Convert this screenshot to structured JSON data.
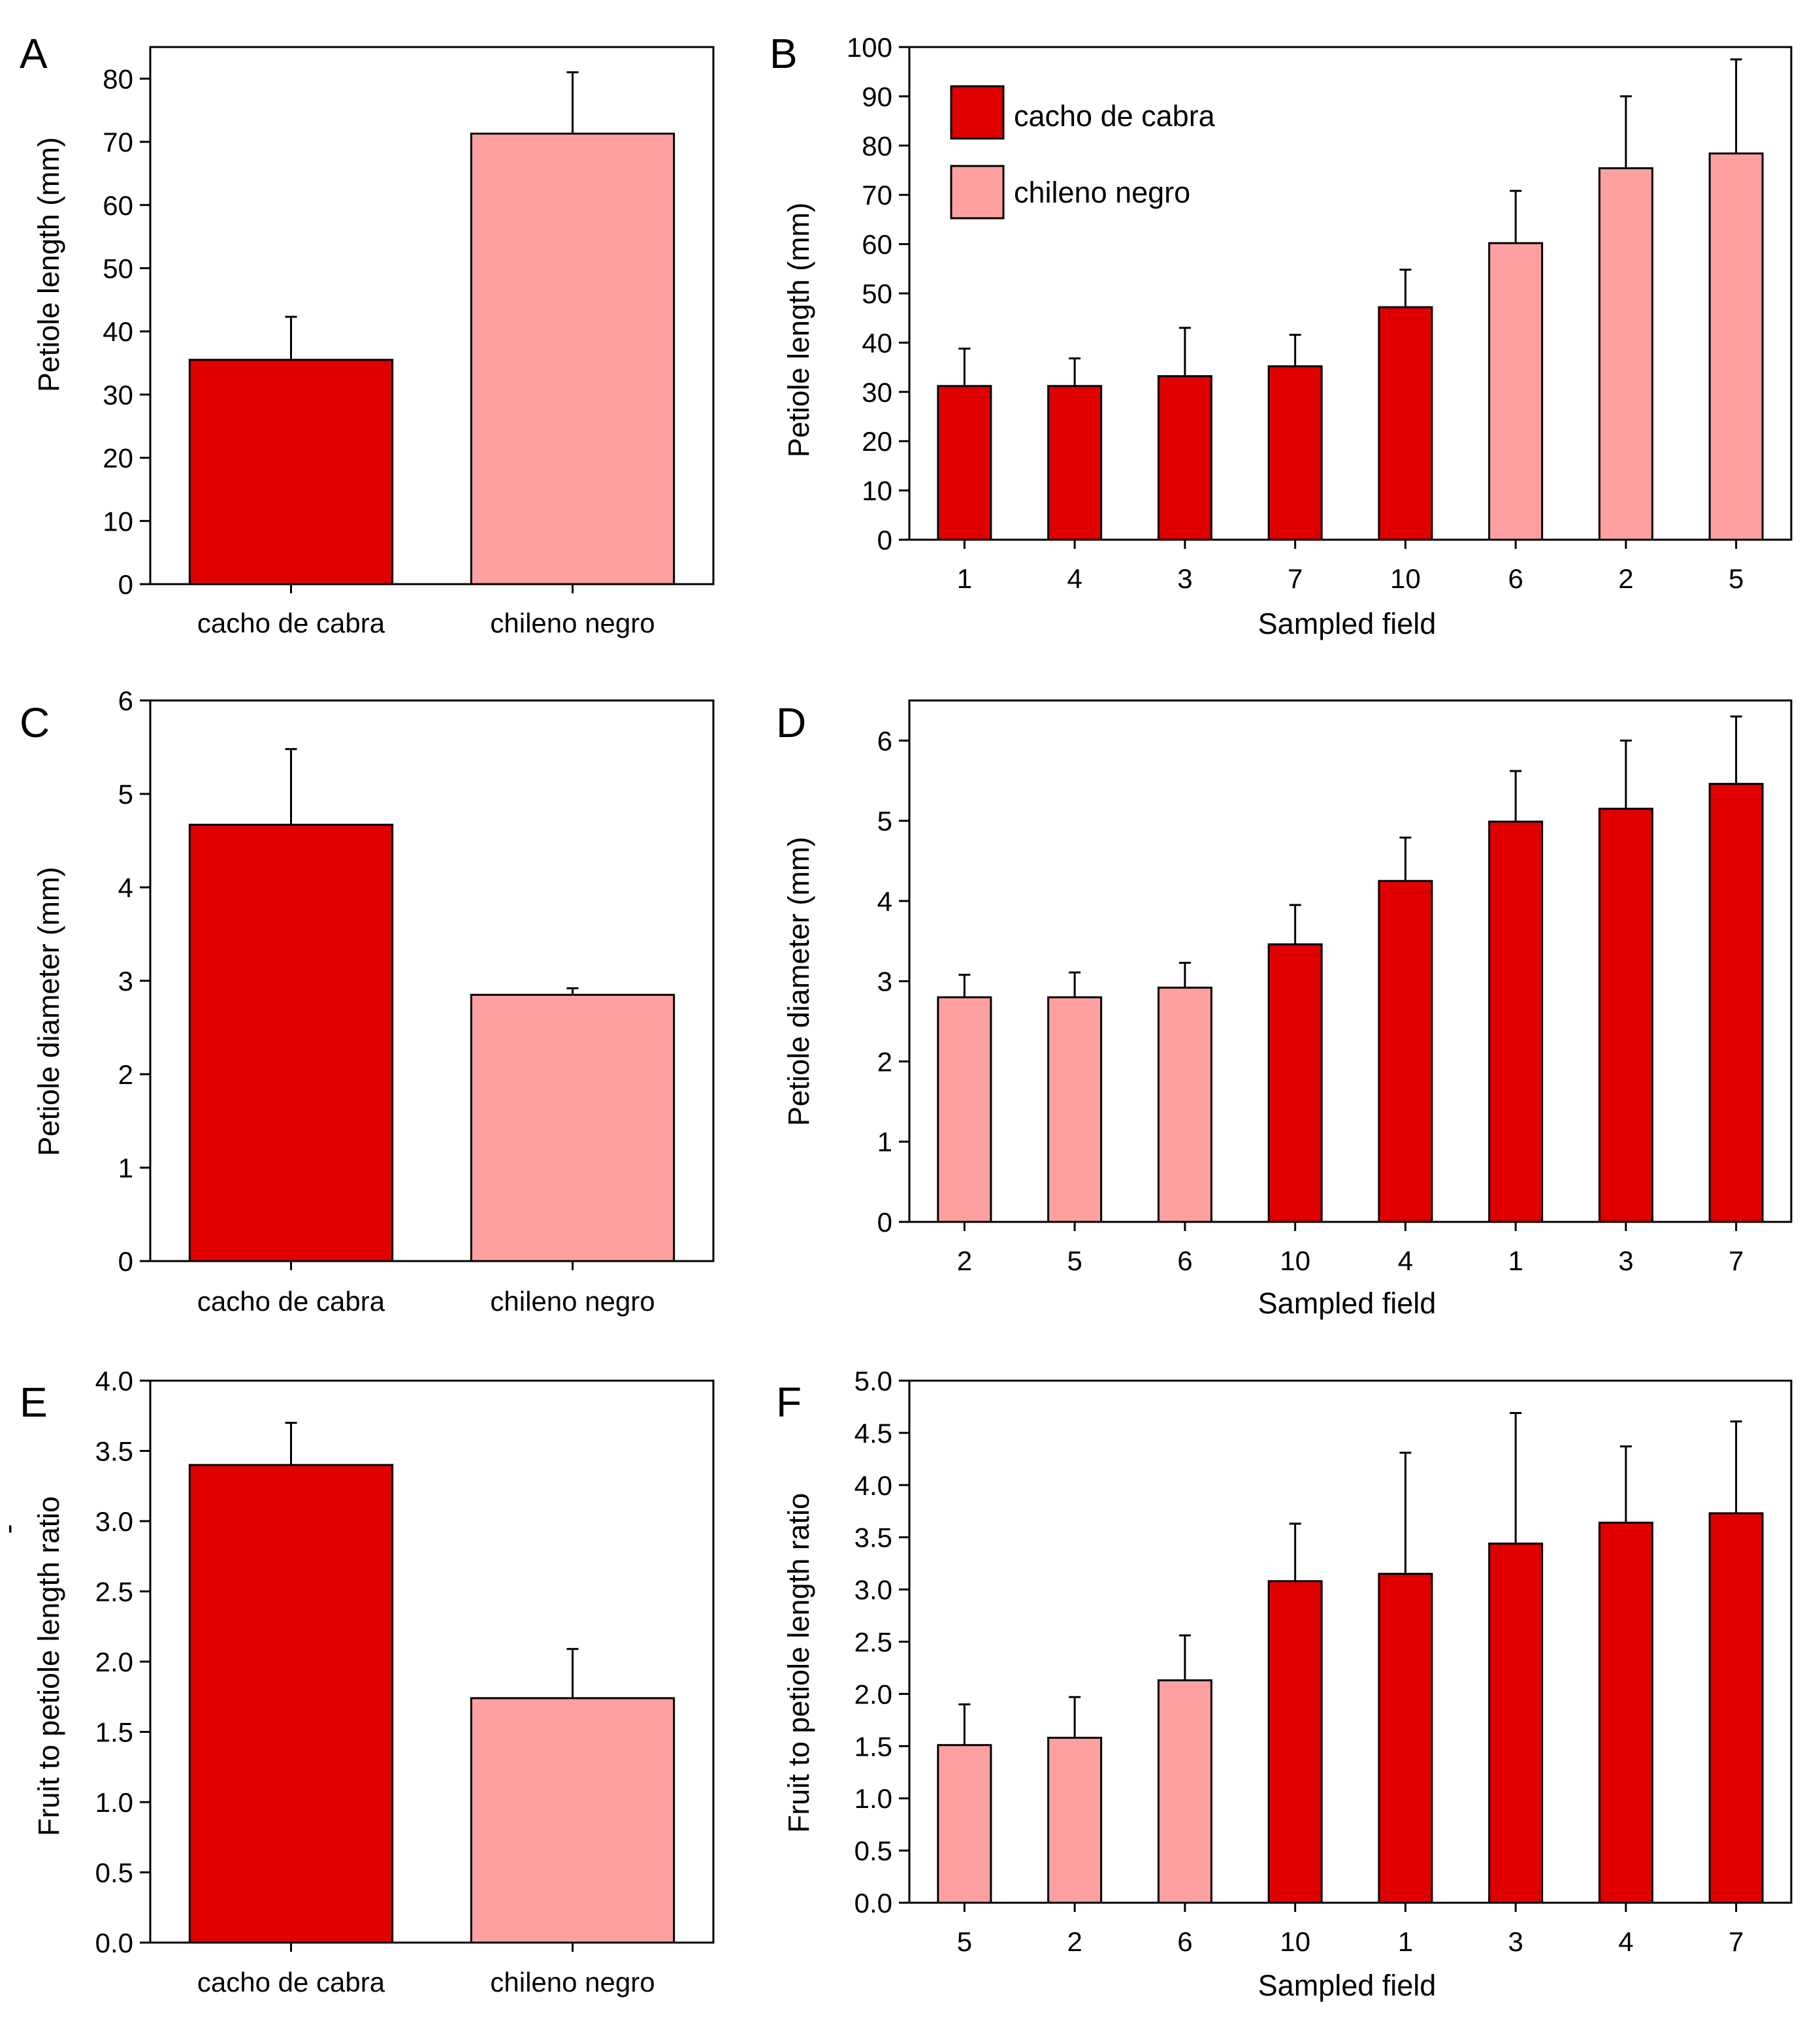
{
  "colors": {
    "cacho_de_cabra": "#e00000",
    "chileno_negro": "#ffa0a0",
    "outline": "#000000"
  },
  "legend": {
    "items": [
      {
        "label": "cacho de cabra",
        "color_key": "cacho_de_cabra"
      },
      {
        "label": "chileno negro",
        "color_key": "chileno_negro"
      }
    ]
  },
  "chart_data": [
    {
      "panel": "A",
      "type": "bar",
      "categories": [
        "cacho de cabra",
        "chileno negro"
      ],
      "groups": [
        "cacho_de_cabra",
        "chileno_negro"
      ],
      "values": [
        35.5,
        71.3
      ],
      "errors": [
        6.8,
        9.7
      ],
      "xlabel": "",
      "ylabel": "Petiole length (mm)",
      "ylim": [
        0,
        85
      ],
      "yticks": [
        "0",
        "10",
        "20",
        "30",
        "40",
        "50",
        "60",
        "70",
        "80"
      ],
      "ytick_values": [
        0,
        10,
        20,
        30,
        40,
        50,
        60,
        70,
        80
      ]
    },
    {
      "panel": "B",
      "type": "bar",
      "categories": [
        "1",
        "4",
        "3",
        "7",
        "10",
        "6",
        "2",
        "5"
      ],
      "groups": [
        "cacho_de_cabra",
        "cacho_de_cabra",
        "cacho_de_cabra",
        "cacho_de_cabra",
        "cacho_de_cabra",
        "chileno_negro",
        "chileno_negro",
        "chileno_negro"
      ],
      "values": [
        31.2,
        31.2,
        33.2,
        35.2,
        47.2,
        60.2,
        75.4,
        78.4
      ],
      "errors": [
        7.6,
        5.6,
        9.8,
        6.4,
        7.6,
        10.6,
        14.6,
        19.1
      ],
      "xlabel": "Sampled field",
      "ylabel": "Petiole length (mm)",
      "ylim": [
        0,
        100
      ],
      "yticks": [
        "0",
        "10",
        "20",
        "30",
        "40",
        "50",
        "60",
        "70",
        "80",
        "90",
        "100"
      ],
      "ytick_values": [
        0,
        10,
        20,
        30,
        40,
        50,
        60,
        70,
        80,
        90,
        100
      ],
      "legend": true
    },
    {
      "panel": "C",
      "type": "bar",
      "categories": [
        "cacho de cabra",
        "chileno negro"
      ],
      "groups": [
        "cacho_de_cabra",
        "chileno_negro"
      ],
      "values": [
        4.67,
        2.85
      ],
      "errors": [
        0.81,
        0.07
      ],
      "xlabel": "",
      "ylabel": "Petiole diameter (mm)",
      "ylim": [
        0,
        6
      ],
      "yticks": [
        "0",
        "1",
        "2",
        "3",
        "4",
        "5",
        "6"
      ],
      "ytick_values": [
        0,
        1,
        2,
        3,
        4,
        5,
        6
      ]
    },
    {
      "panel": "D",
      "type": "bar",
      "categories": [
        "2",
        "5",
        "6",
        "10",
        "4",
        "1",
        "3",
        "7"
      ],
      "groups": [
        "chileno_negro",
        "chileno_negro",
        "chileno_negro",
        "cacho_de_cabra",
        "cacho_de_cabra",
        "cacho_de_cabra",
        "cacho_de_cabra",
        "cacho_de_cabra"
      ],
      "values": [
        2.8,
        2.8,
        2.92,
        3.46,
        4.25,
        4.99,
        5.15,
        5.46
      ],
      "errors": [
        0.28,
        0.31,
        0.31,
        0.49,
        0.54,
        0.63,
        0.85,
        0.84
      ],
      "xlabel": "Sampled field",
      "ylabel": "Petiole diameter (mm)",
      "ylim": [
        0,
        6.5
      ],
      "yticks": [
        "0",
        "1",
        "2",
        "3",
        "4",
        "5",
        "6"
      ],
      "ytick_values": [
        0,
        1,
        2,
        3,
        4,
        5,
        6
      ]
    },
    {
      "panel": "E",
      "type": "bar",
      "categories": [
        "cacho de cabra",
        "chileno negro"
      ],
      "groups": [
        "cacho_de_cabra",
        "chileno_negro"
      ],
      "values": [
        3.4,
        1.74
      ],
      "errors": [
        0.3,
        0.35
      ],
      "xlabel": "",
      "ylabel": "Fruit to petiole length ratio",
      "ylabel_mark": "-",
      "ylim": [
        0,
        4
      ],
      "yticks": [
        "0.0",
        "0.5",
        "1.0",
        "1.5",
        "2.0",
        "2.5",
        "3.0",
        "3.5",
        "4.0"
      ],
      "ytick_values": [
        0,
        0.5,
        1,
        1.5,
        2,
        2.5,
        3,
        3.5,
        4
      ]
    },
    {
      "panel": "F",
      "type": "bar",
      "categories": [
        "5",
        "2",
        "6",
        "10",
        "1",
        "3",
        "4",
        "7"
      ],
      "groups": [
        "chileno_negro",
        "chileno_negro",
        "chileno_negro",
        "cacho_de_cabra",
        "cacho_de_cabra",
        "cacho_de_cabra",
        "cacho_de_cabra",
        "cacho_de_cabra"
      ],
      "values": [
        1.51,
        1.58,
        2.13,
        3.08,
        3.15,
        3.44,
        3.64,
        3.73
      ],
      "errors": [
        0.39,
        0.39,
        0.43,
        0.55,
        1.16,
        1.25,
        0.73,
        0.88
      ],
      "xlabel": "Sampled field",
      "ylabel": "Fruit to petiole length ratio",
      "ylim": [
        0,
        5
      ],
      "yticks": [
        "0.0",
        "0.5",
        "1.0",
        "1.5",
        "2.0",
        "2.5",
        "3.0",
        "3.5",
        "4.0",
        "4.5",
        "5.0"
      ],
      "ytick_values": [
        0,
        0.5,
        1,
        1.5,
        2,
        2.5,
        3,
        3.5,
        4,
        4.5,
        5
      ]
    }
  ]
}
